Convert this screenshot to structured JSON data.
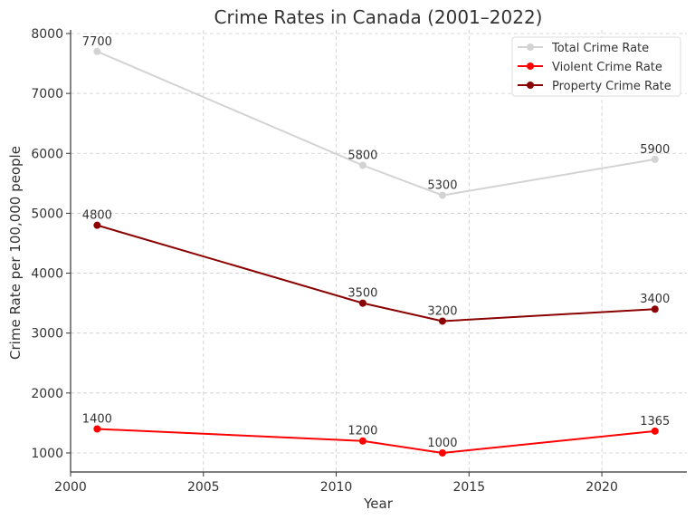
{
  "chart_data": {
    "type": "line",
    "title": "Crime Rates in Canada (2001–2022)",
    "xlabel": "Year",
    "ylabel": "Crime Rate per 100,000 people",
    "x": [
      2001,
      2011,
      2014,
      2022
    ],
    "xlim": [
      2000,
      2023.2
    ],
    "ylim": [
      682,
      8000
    ],
    "xticks": [
      2000,
      2005,
      2010,
      2015,
      2020
    ],
    "yticks": [
      1000,
      2000,
      3000,
      4000,
      5000,
      6000,
      7000,
      8000
    ],
    "grid": true,
    "legend_position": "top-right",
    "series": [
      {
        "name": "Total Crime Rate",
        "color": "#d3d3d3",
        "values": [
          7700,
          5800,
          5300,
          5900
        ],
        "labels": [
          "7700",
          "5800",
          "5300",
          "5900"
        ]
      },
      {
        "name": "Violent Crime Rate",
        "color": "#ff0000",
        "values": [
          1400,
          1200,
          1000,
          1365
        ],
        "labels": [
          "1400",
          "1200",
          "1000",
          "1365"
        ]
      },
      {
        "name": "Property Crime Rate",
        "color": "#8b0000",
        "values": [
          4800,
          3500,
          3200,
          3400
        ],
        "labels": [
          "4800",
          "3500",
          "3200",
          "3400"
        ]
      }
    ]
  }
}
